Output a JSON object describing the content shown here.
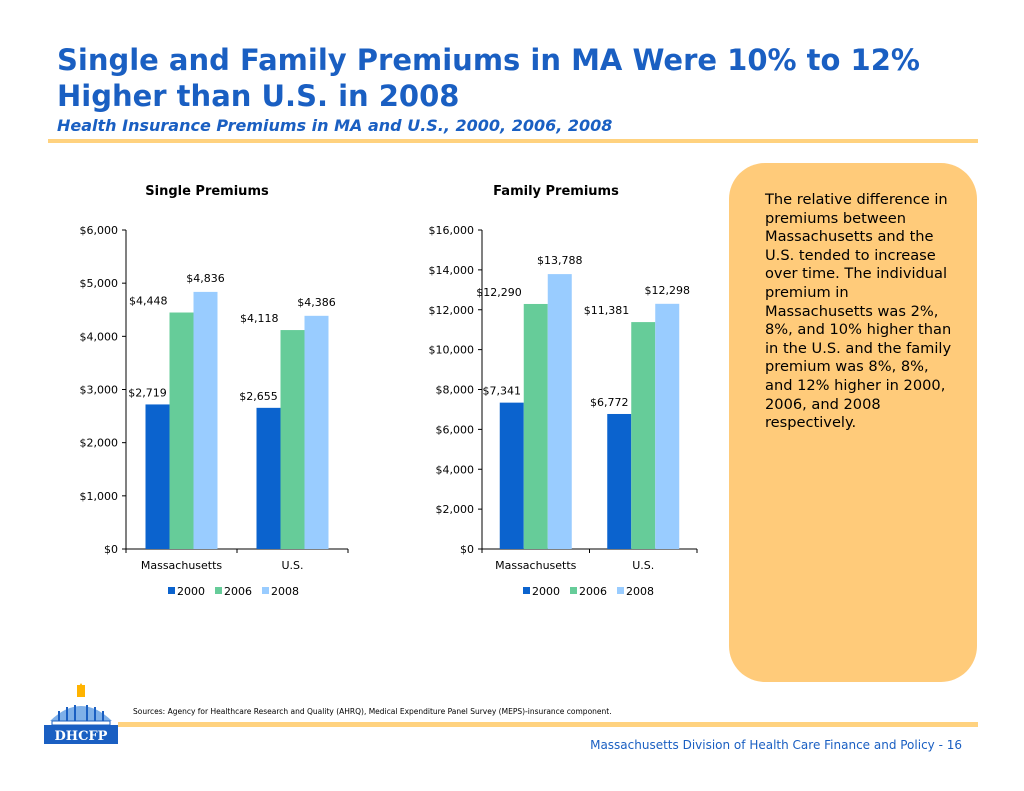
{
  "title": "Single and Family Premiums in MA Were 10% to 12% Higher than U.S. in 2008",
  "subtitle": "Health Insurance Premiums in MA and U.S., 2000, 2006, 2008",
  "side_note": "The relative difference in premiums between Massachusetts and the U.S. tended to increase over time. The individual premium in Massachusetts was 2%, 8%, and 10% higher than in the U.S. and the family premium was 8%, 8%, and 12% higher in 2000, 2006, and 2008 respectively.",
  "sources": "Sources: Agency for Healthcare Research and Quality (AHRQ), Medical Expenditure Panel Survey (MEPS)-insurance component.",
  "footer": "Massachusetts Division of Health Care Finance and Policy - 16",
  "logo_text": "DHCFP",
  "colors": {
    "accent": "#1a5fc2",
    "rule": "#ffd27f",
    "box": "#ffcb7a",
    "s2000": "#0b63ce",
    "s2006": "#66cc99",
    "s2008": "#99ccff"
  },
  "chart_data": [
    {
      "type": "bar",
      "title": "Single Premiums",
      "categories": [
        "Massachusetts",
        "U.S."
      ],
      "series": [
        {
          "name": "2000",
          "values": [
            2719,
            2655
          ]
        },
        {
          "name": "2006",
          "values": [
            4448,
            4118
          ]
        },
        {
          "name": "2008",
          "values": [
            4836,
            4386
          ]
        }
      ],
      "ylim": [
        0,
        6000
      ],
      "yticks": [
        0,
        1000,
        2000,
        3000,
        4000,
        5000,
        6000
      ],
      "ytick_labels": [
        "$0",
        "$1,000",
        "$2,000",
        "$3,000",
        "$4,000",
        "$5,000",
        "$6,000"
      ],
      "data_labels": [
        [
          "$2,719",
          "$2,655"
        ],
        [
          "$4,448",
          "$4,118"
        ],
        [
          "$4,836",
          "$4,386"
        ]
      ],
      "legend": "bottom",
      "grid": false
    },
    {
      "type": "bar",
      "title": "Family Premiums",
      "categories": [
        "Massachusetts",
        "U.S."
      ],
      "series": [
        {
          "name": "2000",
          "values": [
            7341,
            6772
          ]
        },
        {
          "name": "2006",
          "values": [
            12290,
            11381
          ]
        },
        {
          "name": "2008",
          "values": [
            13788,
            12298
          ]
        }
      ],
      "ylim": [
        0,
        16000
      ],
      "yticks": [
        0,
        2000,
        4000,
        6000,
        8000,
        10000,
        12000,
        14000,
        16000
      ],
      "ytick_labels": [
        "$0",
        "$2,000",
        "$4,000",
        "$6,000",
        "$8,000",
        "$10,000",
        "$12,000",
        "$14,000",
        "$16,000"
      ],
      "data_labels": [
        [
          "$7,341",
          "$6,772"
        ],
        [
          "$12,290",
          "$11,381"
        ],
        [
          "$13,788",
          "$12,298"
        ]
      ],
      "legend": "bottom",
      "grid": false
    }
  ]
}
